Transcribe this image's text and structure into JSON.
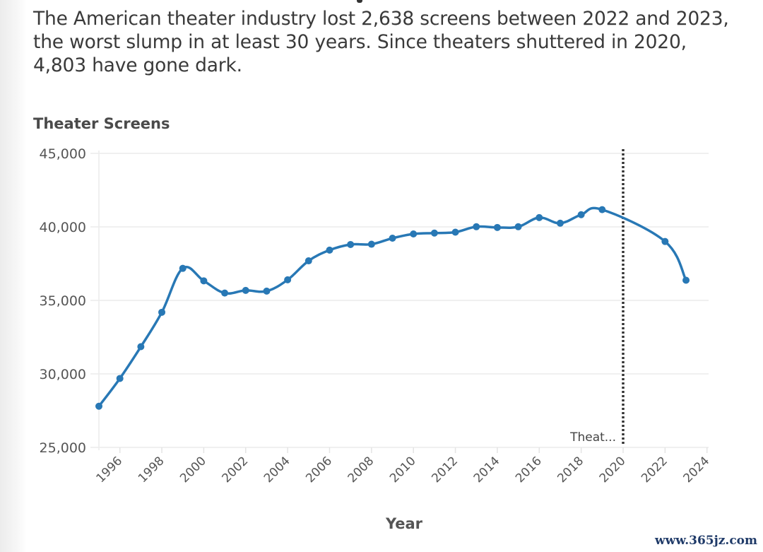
{
  "headline": "The American theater industry lost 2,638 screens between 2022 and 2023, the worst slump in at least 30 years. Since theaters shuttered in 2020, 4,803 have gone dark.",
  "watermark": "www.365jz.com",
  "chart_data": {
    "type": "line",
    "title": "",
    "ylabel": "Theater Screens",
    "xlabel": "Year",
    "ylim": [
      25000,
      45000
    ],
    "xlim": [
      1995,
      2024
    ],
    "yticks": [
      25000,
      30000,
      35000,
      40000,
      45000
    ],
    "ytick_labels": [
      "25,000",
      "30,000",
      "35,000",
      "40,000",
      "45,000"
    ],
    "xticks": [
      1996,
      1998,
      2000,
      2002,
      2004,
      2006,
      2008,
      2010,
      2012,
      2014,
      2016,
      2018,
      2020,
      2022,
      2024
    ],
    "xtick_labels": [
      "1996",
      "1998",
      "2000",
      "2002",
      "2004",
      "2006",
      "2008",
      "2010",
      "2012",
      "2014",
      "2016",
      "2018",
      "2020",
      "2022",
      "2024"
    ],
    "grid": true,
    "series_color": "#2878b5",
    "series": [
      {
        "name": "Theater Screens",
        "x": [
          1995,
          1996,
          1997,
          1998,
          1999,
          2000,
          2001,
          2002,
          2003,
          2004,
          2005,
          2006,
          2007,
          2008,
          2009,
          2010,
          2011,
          2012,
          2013,
          2014,
          2015,
          2016,
          2017,
          2018,
          2019,
          2022,
          2023
        ],
        "values": [
          27800,
          29690,
          31850,
          34190,
          37180,
          36330,
          35500,
          35680,
          35630,
          36400,
          37690,
          38420,
          38800,
          38820,
          39230,
          39520,
          39580,
          39640,
          40010,
          39960,
          40010,
          40630,
          40250,
          40830,
          41172,
          39007,
          36369
        ]
      }
    ],
    "annotations": [
      {
        "x": 2020,
        "type": "vertical-dotted-line",
        "label": "Theat..."
      }
    ]
  }
}
